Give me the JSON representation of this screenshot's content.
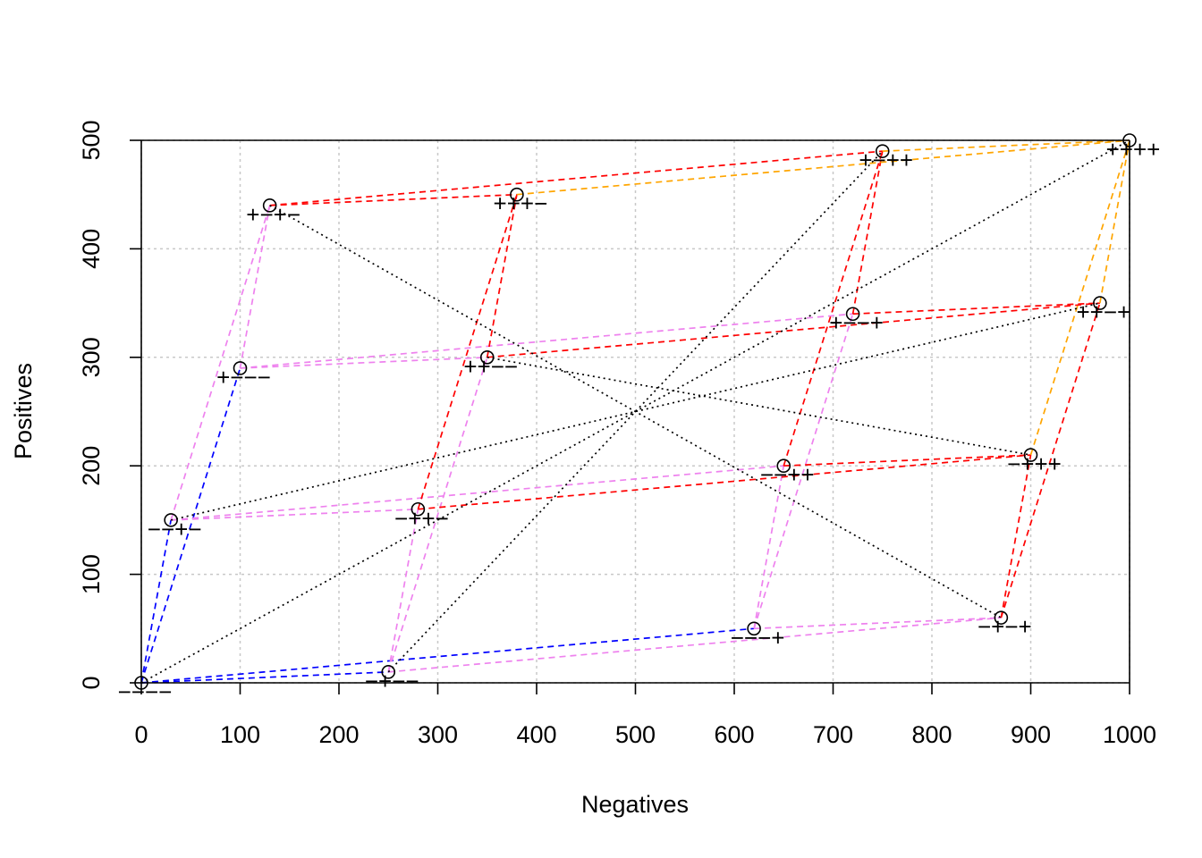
{
  "chart_data": {
    "type": "scatter",
    "title": "",
    "xlabel": "Negatives",
    "ylabel": "Positives",
    "xlim": [
      0,
      1000
    ],
    "ylim": [
      0,
      500
    ],
    "xticks": [
      0,
      100,
      200,
      300,
      400,
      500,
      600,
      700,
      800,
      900,
      1000
    ],
    "yticks": [
      0,
      100,
      200,
      300,
      400,
      500
    ],
    "grid": true,
    "points": [
      {
        "label": "−−−−",
        "x": 0,
        "y": 0
      },
      {
        "label": "−−+−",
        "x": 30,
        "y": 150
      },
      {
        "label": "+−−−",
        "x": 100,
        "y": 290
      },
      {
        "label": "+−+−",
        "x": 130,
        "y": 440
      },
      {
        "label": "−+−−",
        "x": 250,
        "y": 10
      },
      {
        "label": "−++−",
        "x": 280,
        "y": 160
      },
      {
        "label": "++−−",
        "x": 350,
        "y": 300
      },
      {
        "label": "+++−",
        "x": 380,
        "y": 450
      },
      {
        "label": "−−−+",
        "x": 620,
        "y": 50
      },
      {
        "label": "−−++",
        "x": 650,
        "y": 200
      },
      {
        "label": "+−−+",
        "x": 720,
        "y": 340
      },
      {
        "label": "+−++",
        "x": 750,
        "y": 490
      },
      {
        "label": "−+−+",
        "x": 870,
        "y": 60
      },
      {
        "label": "−+++",
        "x": 900,
        "y": 210
      },
      {
        "label": "++−+",
        "x": 970,
        "y": 350
      },
      {
        "label": "++++",
        "x": 1000,
        "y": 500
      }
    ],
    "edges": [
      {
        "from": 0,
        "to": 1,
        "color": "#0000ff",
        "style": "dashed"
      },
      {
        "from": 0,
        "to": 2,
        "color": "#0000ff",
        "style": "dashed"
      },
      {
        "from": 0,
        "to": 4,
        "color": "#0000ff",
        "style": "dashed"
      },
      {
        "from": 0,
        "to": 8,
        "color": "#0000ff",
        "style": "dashed"
      },
      {
        "from": 1,
        "to": 3,
        "color": "#ee82ee",
        "style": "dashed"
      },
      {
        "from": 1,
        "to": 5,
        "color": "#ee82ee",
        "style": "dashed"
      },
      {
        "from": 1,
        "to": 9,
        "color": "#ee82ee",
        "style": "dashed"
      },
      {
        "from": 2,
        "to": 3,
        "color": "#ee82ee",
        "style": "dashed"
      },
      {
        "from": 2,
        "to": 6,
        "color": "#ee82ee",
        "style": "dashed"
      },
      {
        "from": 2,
        "to": 10,
        "color": "#ee82ee",
        "style": "dashed"
      },
      {
        "from": 4,
        "to": 5,
        "color": "#ee82ee",
        "style": "dashed"
      },
      {
        "from": 4,
        "to": 6,
        "color": "#ee82ee",
        "style": "dashed"
      },
      {
        "from": 4,
        "to": 12,
        "color": "#ee82ee",
        "style": "dashed"
      },
      {
        "from": 8,
        "to": 9,
        "color": "#ee82ee",
        "style": "dashed"
      },
      {
        "from": 8,
        "to": 10,
        "color": "#ee82ee",
        "style": "dashed"
      },
      {
        "from": 8,
        "to": 12,
        "color": "#ee82ee",
        "style": "dashed"
      },
      {
        "from": 3,
        "to": 7,
        "color": "#ff0000",
        "style": "dashed"
      },
      {
        "from": 3,
        "to": 11,
        "color": "#ff0000",
        "style": "dashed"
      },
      {
        "from": 5,
        "to": 7,
        "color": "#ff0000",
        "style": "dashed"
      },
      {
        "from": 5,
        "to": 13,
        "color": "#ff0000",
        "style": "dashed"
      },
      {
        "from": 6,
        "to": 7,
        "color": "#ff0000",
        "style": "dashed"
      },
      {
        "from": 6,
        "to": 14,
        "color": "#ff0000",
        "style": "dashed"
      },
      {
        "from": 9,
        "to": 11,
        "color": "#ff0000",
        "style": "dashed"
      },
      {
        "from": 9,
        "to": 13,
        "color": "#ff0000",
        "style": "dashed"
      },
      {
        "from": 10,
        "to": 11,
        "color": "#ff0000",
        "style": "dashed"
      },
      {
        "from": 10,
        "to": 14,
        "color": "#ff0000",
        "style": "dashed"
      },
      {
        "from": 12,
        "to": 13,
        "color": "#ff0000",
        "style": "dashed"
      },
      {
        "from": 12,
        "to": 14,
        "color": "#ff0000",
        "style": "dashed"
      },
      {
        "from": 7,
        "to": 15,
        "color": "#ffa500",
        "style": "dashed"
      },
      {
        "from": 11,
        "to": 15,
        "color": "#ffa500",
        "style": "dashed"
      },
      {
        "from": 13,
        "to": 15,
        "color": "#ffa500",
        "style": "dashed"
      },
      {
        "from": 14,
        "to": 15,
        "color": "#ffa500",
        "style": "dashed"
      },
      {
        "from": 0,
        "to": 15,
        "color": "#000000",
        "style": "dotted"
      },
      {
        "from": 1,
        "to": 14,
        "color": "#000000",
        "style": "dotted"
      },
      {
        "from": 3,
        "to": 12,
        "color": "#000000",
        "style": "dotted"
      },
      {
        "from": 4,
        "to": 11,
        "color": "#000000",
        "style": "dotted"
      },
      {
        "from": 6,
        "to": 13,
        "color": "#000000",
        "style": "dotted"
      }
    ]
  }
}
